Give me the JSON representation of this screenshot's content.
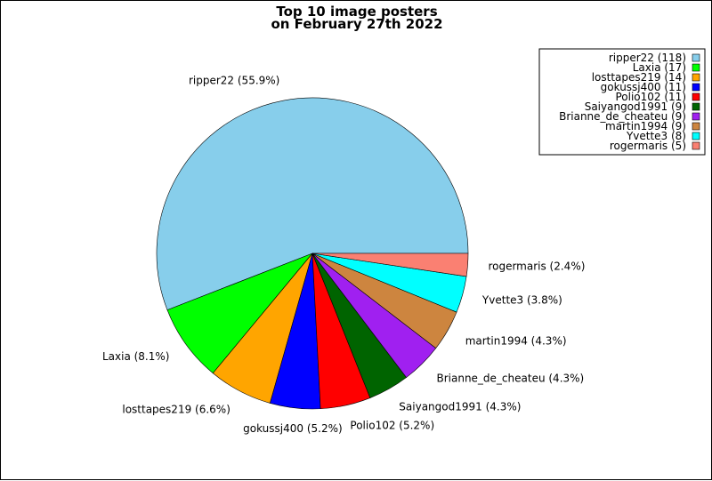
{
  "chart_data": {
    "type": "pie",
    "title": [
      "Top 10 image posters",
      "on February 27th 2022"
    ],
    "slices": [
      {
        "name": "ripper22",
        "value": 118,
        "percent_label": "ripper22 (55.9%)",
        "legend_label": "ripper22 (118)",
        "color": "#87ceeb"
      },
      {
        "name": "Laxia",
        "value": 17,
        "percent_label": "Laxia (8.1%)",
        "legend_label": "Laxia (17)",
        "color": "#00ff00"
      },
      {
        "name": "losttapes219",
        "value": 14,
        "percent_label": "losttapes219 (6.6%)",
        "legend_label": "losttapes219 (14)",
        "color": "#ffa500"
      },
      {
        "name": "gokussj400",
        "value": 11,
        "percent_label": "gokussj400 (5.2%)",
        "legend_label": "gokussj400 (11)",
        "color": "#0000ff"
      },
      {
        "name": "Polio102",
        "value": 11,
        "percent_label": "Polio102 (5.2%)",
        "legend_label": "Polio102 (11)",
        "color": "#ff0000"
      },
      {
        "name": "Saiyangod1991",
        "value": 9,
        "percent_label": "Saiyangod1991 (4.3%)",
        "legend_label": "Saiyangod1991 (9)",
        "color": "#006400"
      },
      {
        "name": "Brianne_de_cheateu",
        "value": 9,
        "percent_label": "Brianne_de_cheateu (4.3%)",
        "legend_label": "Brianne_de_cheateu (9)",
        "color": "#a020f0"
      },
      {
        "name": "martin1994",
        "value": 9,
        "percent_label": "martin1994 (4.3%)",
        "legend_label": "martin1994 (9)",
        "color": "#cd853f"
      },
      {
        "name": "Yvette3",
        "value": 8,
        "percent_label": "Yvette3 (3.8%)",
        "legend_label": "Yvette3 (8)",
        "color": "#00ffff"
      },
      {
        "name": "rogermaris",
        "value": 5,
        "percent_label": "rogermaris (2.4%)",
        "legend_label": "rogermaris (5)",
        "color": "#fa8072"
      }
    ],
    "legend_position": "top-right"
  }
}
